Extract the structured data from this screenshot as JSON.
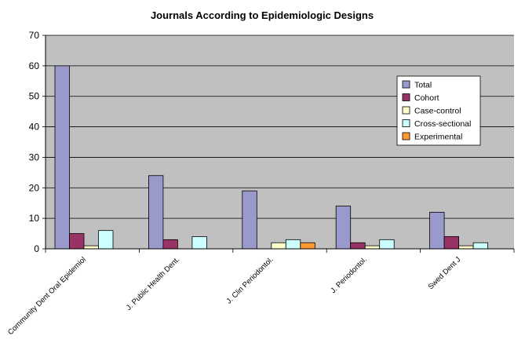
{
  "chart_data": {
    "type": "bar",
    "title": "Journals According to Epidemiologic Designs",
    "xlabel": "",
    "ylabel": "",
    "ylim": [
      0,
      70
    ],
    "yticks": [
      0,
      10,
      20,
      30,
      40,
      50,
      60,
      70
    ],
    "grid": true,
    "legend_position": "top-right",
    "categories": [
      "Community Dent Oral Epidemiol",
      "J. Public Health Dent.",
      "J. Clin Periodontol.",
      "J. Periodontol.",
      "Swed Dent J"
    ],
    "series": [
      {
        "name": "Total",
        "color": "#9999cc",
        "values": [
          60,
          24,
          19,
          14,
          12
        ]
      },
      {
        "name": "Cohort",
        "color": "#993366",
        "values": [
          5,
          3,
          0,
          2,
          4
        ]
      },
      {
        "name": "Case-control",
        "color": "#ffffcc",
        "values": [
          1,
          0,
          2,
          1,
          1
        ]
      },
      {
        "name": "Cross-sectional",
        "color": "#ccffff",
        "values": [
          6,
          4,
          3,
          3,
          2
        ]
      },
      {
        "name": "Experimental",
        "color": "#ff9933",
        "values": [
          0,
          0,
          2,
          0,
          0
        ]
      }
    ],
    "plot_background": "#c0c0c0"
  }
}
